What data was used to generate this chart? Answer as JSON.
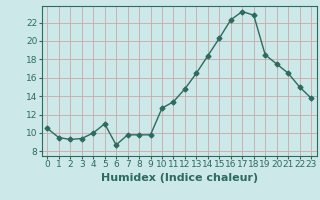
{
  "x": [
    0,
    1,
    2,
    3,
    4,
    5,
    6,
    7,
    8,
    9,
    10,
    11,
    12,
    13,
    14,
    15,
    16,
    17,
    18,
    19,
    20,
    21,
    22,
    23
  ],
  "y": [
    10.5,
    9.5,
    9.3,
    9.4,
    10.0,
    11.0,
    8.7,
    9.8,
    9.8,
    9.8,
    12.7,
    13.4,
    14.8,
    16.5,
    18.4,
    20.3,
    22.3,
    23.2,
    22.8,
    18.5,
    17.5,
    16.5,
    15.0,
    13.8
  ],
  "xlabel": "Humidex (Indice chaleur)",
  "xlim": [
    -0.5,
    23.5
  ],
  "ylim": [
    7.5,
    23.8
  ],
  "yticks": [
    8,
    10,
    12,
    14,
    16,
    18,
    20,
    22
  ],
  "xticks": [
    0,
    1,
    2,
    3,
    4,
    5,
    6,
    7,
    8,
    9,
    10,
    11,
    12,
    13,
    14,
    15,
    16,
    17,
    18,
    19,
    20,
    21,
    22,
    23
  ],
  "line_color": "#2d6b5e",
  "marker": "D",
  "marker_size": 2.5,
  "bg_color": "#cce8e8",
  "grid_color": "#c8a8a8",
  "xlabel_fontsize": 8,
  "tick_fontsize": 6.5,
  "linewidth": 1.0
}
